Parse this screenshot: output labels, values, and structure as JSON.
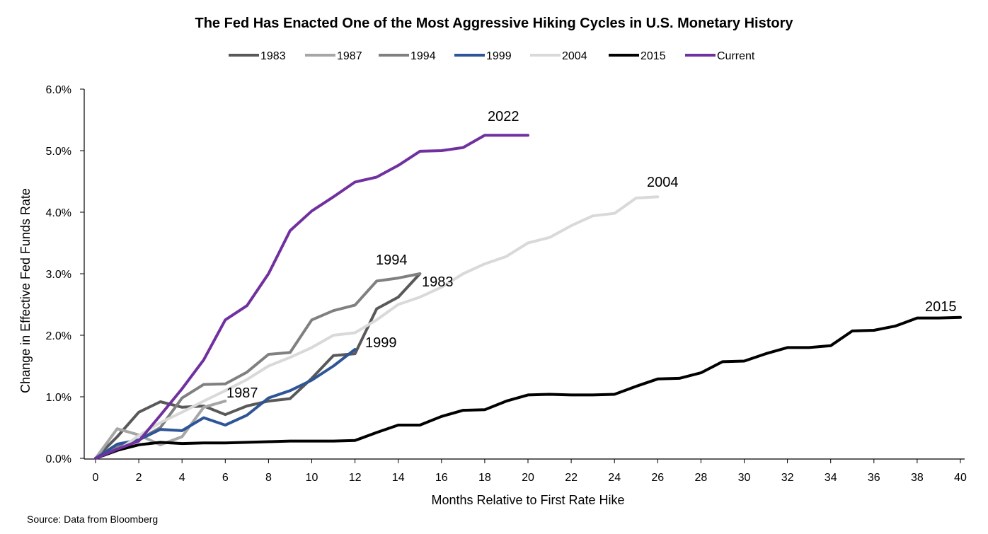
{
  "chart_data": {
    "type": "line",
    "title": "The Fed Has Enacted One of the Most Aggressive Hiking Cycles in U.S. Monetary History",
    "xlabel": "Months Relative to First Rate Hike",
    "ylabel": "Change in Effective Fed Funds Rate",
    "xlim": [
      0,
      40
    ],
    "ylim": [
      0,
      6
    ],
    "x_ticks": [
      "0",
      "2",
      "4",
      "6",
      "8",
      "10",
      "12",
      "14",
      "16",
      "18",
      "20",
      "22",
      "24",
      "26",
      "28",
      "30",
      "32",
      "34",
      "36",
      "38",
      "40"
    ],
    "y_ticks": [
      "0.0%",
      "1.0%",
      "2.0%",
      "3.0%",
      "4.0%",
      "5.0%",
      "6.0%"
    ],
    "grid": false,
    "legend_position": "top",
    "source": "Source: Data from Bloomberg",
    "series": [
      {
        "name": "1983",
        "color": "#595959",
        "label": "1983",
        "x": [
          0,
          1,
          2,
          3,
          4,
          5,
          6,
          7,
          8,
          9,
          10,
          11,
          12,
          13,
          14,
          15
        ],
        "y": [
          0,
          0.35,
          0.75,
          0.92,
          0.83,
          0.85,
          0.71,
          0.85,
          0.93,
          0.97,
          1.3,
          1.67,
          1.7,
          2.43,
          2.62,
          3.0
        ]
      },
      {
        "name": "1987",
        "color": "#a6a6a6",
        "label": "1987",
        "x": [
          0,
          1,
          2,
          3,
          4,
          5,
          6
        ],
        "y": [
          0,
          0.48,
          0.38,
          0.22,
          0.35,
          0.83,
          0.93
        ]
      },
      {
        "name": "1994",
        "color": "#808080",
        "label": "1994",
        "x": [
          0,
          1,
          2,
          3,
          4,
          5,
          6,
          7,
          8,
          9,
          10,
          11,
          12,
          13,
          14,
          15
        ],
        "y": [
          0,
          0.2,
          0.3,
          0.5,
          0.98,
          1.2,
          1.21,
          1.4,
          1.69,
          1.72,
          2.25,
          2.4,
          2.49,
          2.88,
          2.93,
          3.0
        ]
      },
      {
        "name": "1999",
        "color": "#2e5597",
        "label": "1999",
        "x": [
          0,
          1,
          2,
          3,
          4,
          5,
          6,
          7,
          8,
          9,
          10,
          11,
          12
        ],
        "y": [
          0,
          0.23,
          0.3,
          0.47,
          0.45,
          0.66,
          0.54,
          0.7,
          0.98,
          1.1,
          1.27,
          1.5,
          1.77
        ]
      },
      {
        "name": "2004",
        "color": "#d9d9d9",
        "label": "2004",
        "x": [
          0,
          1,
          2,
          3,
          4,
          5,
          6,
          7,
          8,
          9,
          10,
          11,
          12,
          13,
          14,
          15,
          16,
          17,
          18,
          19,
          20,
          21,
          22,
          23,
          24,
          25,
          26
        ],
        "y": [
          0,
          0.12,
          0.37,
          0.58,
          0.75,
          0.93,
          1.1,
          1.28,
          1.5,
          1.64,
          1.8,
          2.0,
          2.04,
          2.25,
          2.5,
          2.62,
          2.78,
          3.0,
          3.16,
          3.28,
          3.5,
          3.59,
          3.78,
          3.94,
          3.98,
          4.23,
          4.25
        ]
      },
      {
        "name": "2015",
        "color": "#000000",
        "label": "2015",
        "x": [
          0,
          1,
          2,
          3,
          4,
          5,
          6,
          7,
          8,
          9,
          10,
          11,
          12,
          13,
          14,
          15,
          16,
          17,
          18,
          19,
          20,
          21,
          22,
          23,
          24,
          25,
          26,
          27,
          28,
          29,
          30,
          31,
          32,
          33,
          34,
          35,
          36,
          37,
          38,
          39,
          40
        ],
        "y": [
          0,
          0.13,
          0.22,
          0.26,
          0.24,
          0.25,
          0.25,
          0.26,
          0.27,
          0.28,
          0.28,
          0.28,
          0.29,
          0.42,
          0.54,
          0.54,
          0.68,
          0.78,
          0.79,
          0.93,
          1.03,
          1.04,
          1.03,
          1.03,
          1.04,
          1.17,
          1.29,
          1.3,
          1.39,
          1.57,
          1.58,
          1.7,
          1.8,
          1.8,
          1.83,
          2.07,
          2.08,
          2.15,
          2.28,
          2.28,
          2.29
        ]
      },
      {
        "name": "Current",
        "color": "#7030a0",
        "label": "2022",
        "x": [
          0,
          1,
          2,
          3,
          4,
          5,
          6,
          7,
          8,
          9,
          10,
          11,
          12,
          13,
          14,
          15,
          16,
          17,
          18,
          19,
          20
        ],
        "y": [
          0,
          0.15,
          0.28,
          0.7,
          1.13,
          1.6,
          2.25,
          2.48,
          3.0,
          3.7,
          4.02,
          4.25,
          4.49,
          4.57,
          4.76,
          4.99,
          5.0,
          5.05,
          5.25,
          5.25,
          5.25
        ]
      }
    ]
  }
}
